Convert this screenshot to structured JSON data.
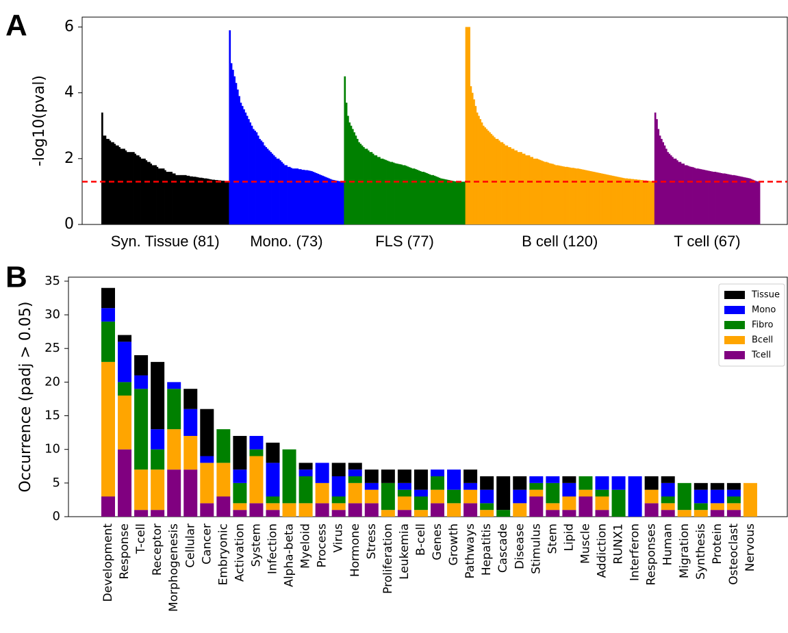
{
  "chart_data": [
    {
      "type": "grouped_ranked_bar",
      "panel": "A",
      "ylabel": "-log10(pval)",
      "ylim": [
        0,
        6.3
      ],
      "yticks": [
        0,
        2,
        4,
        6
      ],
      "threshold_line": {
        "value": 1.3,
        "color": "#ff0000"
      },
      "series": [
        {
          "name": "Syn. Tissue (81)",
          "color": "#000000",
          "values": [
            3.4,
            2.7,
            2.7,
            2.6,
            2.6,
            2.55,
            2.5,
            2.5,
            2.45,
            2.4,
            2.4,
            2.35,
            2.3,
            2.3,
            2.3,
            2.25,
            2.2,
            2.2,
            2.2,
            2.2,
            2.2,
            2.15,
            2.1,
            2.1,
            2.05,
            2.0,
            2.0,
            2.0,
            1.95,
            1.9,
            1.9,
            1.85,
            1.8,
            1.8,
            1.8,
            1.75,
            1.7,
            1.7,
            1.7,
            1.7,
            1.65,
            1.6,
            1.6,
            1.6,
            1.6,
            1.55,
            1.55,
            1.5,
            1.5,
            1.5,
            1.5,
            1.5,
            1.5,
            1.5,
            1.48,
            1.48,
            1.46,
            1.46,
            1.45,
            1.45,
            1.44,
            1.43,
            1.42,
            1.42,
            1.41,
            1.4,
            1.4,
            1.39,
            1.38,
            1.37,
            1.36,
            1.36,
            1.35,
            1.35,
            1.34,
            1.34,
            1.33,
            1.33,
            1.32,
            1.32,
            1.31
          ]
        },
        {
          "name": "Mono. (73)",
          "color": "#0000ff",
          "values": [
            5.9,
            4.9,
            4.7,
            4.5,
            4.3,
            4.1,
            3.9,
            3.7,
            3.6,
            3.5,
            3.4,
            3.3,
            3.2,
            3.1,
            3.0,
            2.9,
            2.85,
            2.8,
            2.7,
            2.6,
            2.55,
            2.5,
            2.4,
            2.35,
            2.3,
            2.25,
            2.2,
            2.15,
            2.1,
            2.05,
            2.0,
            2.0,
            1.95,
            1.9,
            1.85,
            1.8,
            1.8,
            1.75,
            1.75,
            1.72,
            1.7,
            1.7,
            1.7,
            1.7,
            1.68,
            1.68,
            1.66,
            1.66,
            1.65,
            1.65,
            1.64,
            1.63,
            1.62,
            1.6,
            1.58,
            1.56,
            1.54,
            1.52,
            1.5,
            1.48,
            1.46,
            1.44,
            1.42,
            1.4,
            1.38,
            1.36,
            1.35,
            1.34,
            1.33,
            1.32,
            1.31,
            1.3,
            1.3
          ]
        },
        {
          "name": "FLS (77)",
          "color": "#008000",
          "values": [
            4.5,
            3.7,
            3.3,
            3.1,
            3.0,
            2.9,
            2.8,
            2.7,
            2.6,
            2.5,
            2.45,
            2.4,
            2.35,
            2.3,
            2.3,
            2.25,
            2.2,
            2.2,
            2.15,
            2.1,
            2.1,
            2.05,
            2.05,
            2.0,
            2.0,
            1.98,
            1.96,
            1.94,
            1.92,
            1.9,
            1.9,
            1.88,
            1.86,
            1.85,
            1.84,
            1.83,
            1.82,
            1.8,
            1.8,
            1.78,
            1.76,
            1.74,
            1.72,
            1.7,
            1.7,
            1.68,
            1.66,
            1.64,
            1.62,
            1.6,
            1.6,
            1.58,
            1.56,
            1.54,
            1.52,
            1.5,
            1.5,
            1.48,
            1.46,
            1.44,
            1.42,
            1.4,
            1.39,
            1.38,
            1.37,
            1.36,
            1.35,
            1.34,
            1.33,
            1.32,
            1.31,
            1.31,
            1.3,
            1.3,
            1.3,
            1.3,
            1.3
          ]
        },
        {
          "name": "B cell (120)",
          "color": "#ffa500",
          "values": [
            6.0,
            6.0,
            6.0,
            4.2,
            4.0,
            3.8,
            3.6,
            3.4,
            3.3,
            3.2,
            3.1,
            3.0,
            2.95,
            2.9,
            2.85,
            2.8,
            2.75,
            2.7,
            2.65,
            2.6,
            2.6,
            2.55,
            2.5,
            2.5,
            2.45,
            2.4,
            2.4,
            2.35,
            2.35,
            2.3,
            2.3,
            2.25,
            2.25,
            2.2,
            2.2,
            2.2,
            2.15,
            2.15,
            2.1,
            2.1,
            2.1,
            2.05,
            2.05,
            2.0,
            2.0,
            2.0,
            1.98,
            1.96,
            1.94,
            1.92,
            1.9,
            1.9,
            1.88,
            1.86,
            1.85,
            1.84,
            1.82,
            1.8,
            1.8,
            1.79,
            1.78,
            1.77,
            1.76,
            1.75,
            1.75,
            1.74,
            1.73,
            1.72,
            1.72,
            1.71,
            1.7,
            1.7,
            1.69,
            1.68,
            1.67,
            1.66,
            1.65,
            1.64,
            1.63,
            1.62,
            1.61,
            1.6,
            1.59,
            1.58,
            1.57,
            1.56,
            1.55,
            1.54,
            1.53,
            1.52,
            1.51,
            1.5,
            1.49,
            1.48,
            1.47,
            1.46,
            1.45,
            1.44,
            1.43,
            1.42,
            1.41,
            1.4,
            1.4,
            1.39,
            1.39,
            1.38,
            1.38,
            1.37,
            1.37,
            1.36,
            1.36,
            1.35,
            1.35,
            1.34,
            1.34,
            1.33,
            1.33,
            1.32,
            1.31,
            1.3
          ]
        },
        {
          "name": "T cell (67)",
          "color": "#800080",
          "values": [
            3.4,
            3.2,
            2.9,
            2.7,
            2.6,
            2.5,
            2.4,
            2.3,
            2.2,
            2.15,
            2.1,
            2.05,
            2.0,
            2.0,
            1.95,
            1.9,
            1.9,
            1.85,
            1.85,
            1.8,
            1.8,
            1.78,
            1.76,
            1.75,
            1.74,
            1.72,
            1.7,
            1.7,
            1.69,
            1.68,
            1.67,
            1.66,
            1.65,
            1.64,
            1.63,
            1.62,
            1.61,
            1.6,
            1.6,
            1.59,
            1.58,
            1.57,
            1.56,
            1.55,
            1.55,
            1.54,
            1.53,
            1.52,
            1.51,
            1.5,
            1.5,
            1.49,
            1.48,
            1.47,
            1.46,
            1.45,
            1.44,
            1.43,
            1.42,
            1.41,
            1.4,
            1.38,
            1.36,
            1.34,
            1.32,
            1.31,
            1.3
          ]
        }
      ]
    },
    {
      "type": "stacked_bar",
      "panel": "B",
      "ylabel": "Occurrence  (padj > 0.05)",
      "ylim": [
        0,
        35.6
      ],
      "yticks": [
        0,
        5,
        10,
        15,
        20,
        25,
        30,
        35
      ],
      "legend": "upper right",
      "categories": [
        "Development",
        "Response",
        "T-cell",
        "Receptor",
        "Morphogenesis",
        "Cellular",
        "Cancer",
        "Embryonic",
        "Activation",
        "System",
        "Infection",
        "Alpha-beta",
        "Myeloid",
        "Process",
        "Virus",
        "Hormone",
        "Stress",
        "Proliferation",
        "Leukemia",
        "B-cell",
        "Genes",
        "Growth",
        "Pathways",
        "Hepatitis",
        "Cascade",
        "Disease",
        "Stimulus",
        "Stem",
        "Lipid",
        "Muscle",
        "Addiction",
        "RUNX1",
        "Interferon",
        "Responses",
        "Human",
        "Migration",
        "Synthesis",
        "Protein",
        "Osteoclast",
        "Nervous"
      ],
      "series": [
        {
          "name": "Tissue",
          "color": "#000000",
          "values": [
            3,
            1,
            3,
            10,
            0,
            3,
            7,
            0,
            5,
            0,
            3,
            0,
            1,
            0,
            2,
            1,
            2,
            2,
            2,
            3,
            0,
            0,
            2,
            2,
            5,
            2,
            0,
            0,
            1,
            0,
            0,
            0,
            0,
            2,
            1,
            0,
            1,
            1,
            1,
            0
          ]
        },
        {
          "name": "Mono",
          "color": "#0000ff",
          "values": [
            2,
            6,
            2,
            3,
            1,
            4,
            1,
            0,
            2,
            2,
            5,
            0,
            1,
            3,
            3,
            1,
            1,
            0,
            1,
            1,
            1,
            3,
            1,
            2,
            0,
            2,
            1,
            1,
            2,
            0,
            2,
            2,
            6,
            0,
            2,
            0,
            2,
            2,
            1,
            0
          ]
        },
        {
          "name": "Fibro",
          "color": "#008000",
          "values": [
            6,
            2,
            12,
            3,
            6,
            0,
            0,
            5,
            3,
            1,
            1,
            8,
            4,
            0,
            1,
            1,
            0,
            4,
            1,
            2,
            2,
            2,
            0,
            1,
            1,
            0,
            1,
            3,
            0,
            2,
            1,
            4,
            0,
            0,
            1,
            4,
            1,
            0,
            1,
            0
          ]
        },
        {
          "name": "Bcell",
          "color": "#ffa500",
          "values": [
            20,
            8,
            6,
            6,
            6,
            5,
            6,
            5,
            1,
            7,
            1,
            2,
            2,
            3,
            1,
            3,
            2,
            1,
            2,
            1,
            2,
            2,
            2,
            1,
            0,
            2,
            1,
            1,
            2,
            1,
            2,
            0,
            0,
            2,
            1,
            1,
            1,
            1,
            1,
            5
          ]
        },
        {
          "name": "Tcell",
          "color": "#800080",
          "values": [
            3,
            10,
            1,
            1,
            7,
            7,
            2,
            3,
            1,
            2,
            1,
            0,
            0,
            2,
            1,
            2,
            2,
            0,
            1,
            0,
            2,
            0,
            2,
            0,
            0,
            0,
            3,
            1,
            1,
            3,
            1,
            0,
            0,
            2,
            1,
            0,
            0,
            1,
            1,
            0
          ]
        }
      ]
    }
  ]
}
